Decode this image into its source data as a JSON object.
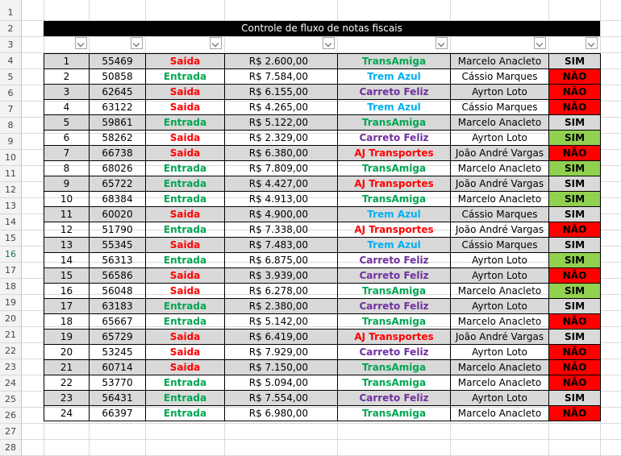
{
  "title": "Controle de fluxo de notas fiscais",
  "row_numbers": [
    "1",
    "2",
    "3",
    "4",
    "5",
    "6",
    "7",
    "8",
    "9",
    "10",
    "11",
    "12",
    "13",
    "14",
    "15",
    "16",
    "17",
    "18",
    "19",
    "20",
    "21",
    "22",
    "23",
    "24",
    "25",
    "26",
    "27",
    "28"
  ],
  "active_row": "16",
  "colors": {
    "saida": "#ff0000",
    "entrada": "#00a651",
    "transamiga": "#00a651",
    "trem_azul": "#00b0f0",
    "carreto_feliz": "#7030a0",
    "aj_transportes": "#ff0000",
    "nao_bg": "#ff0000",
    "sim_green_bg": "#92d050",
    "sim_gray_bg": "#d9d9d9"
  },
  "rows": [
    {
      "id": "1",
      "nf": "55469",
      "tipo": "Saida",
      "valor": "R$ 2.600,00",
      "transp": "TransAmiga",
      "resp": "Marcelo Anacleto",
      "status": "SIM",
      "sc": "gray"
    },
    {
      "id": "2",
      "nf": "50858",
      "tipo": "Entrada",
      "valor": "R$ 7.584,00",
      "transp": "Trem Azul",
      "resp": "Cássio Marques",
      "status": "NÃO",
      "sc": "red"
    },
    {
      "id": "3",
      "nf": "62645",
      "tipo": "Saida",
      "valor": "R$ 6.155,00",
      "transp": "Carreto Feliz",
      "resp": "Ayrton Loto",
      "status": "NÃO",
      "sc": "red"
    },
    {
      "id": "4",
      "nf": "63122",
      "tipo": "Saida",
      "valor": "R$ 4.265,00",
      "transp": "Trem Azul",
      "resp": "Cássio Marques",
      "status": "NÃO",
      "sc": "red"
    },
    {
      "id": "5",
      "nf": "59861",
      "tipo": "Entrada",
      "valor": "R$ 5.122,00",
      "transp": "TransAmiga",
      "resp": "Marcelo Anacleto",
      "status": "SIM",
      "sc": "gray"
    },
    {
      "id": "6",
      "nf": "58262",
      "tipo": "Saida",
      "valor": "R$ 2.329,00",
      "transp": "Carreto Feliz",
      "resp": "Ayrton Loto",
      "status": "SIM",
      "sc": "green"
    },
    {
      "id": "7",
      "nf": "66738",
      "tipo": "Saida",
      "valor": "R$ 6.380,00",
      "transp": "AJ Transportes",
      "resp": "João André Vargas",
      "status": "NÃO",
      "sc": "red"
    },
    {
      "id": "8",
      "nf": "68026",
      "tipo": "Entrada",
      "valor": "R$ 7.809,00",
      "transp": "TransAmiga",
      "resp": "Marcelo Anacleto",
      "status": "SIM",
      "sc": "green"
    },
    {
      "id": "9",
      "nf": "65722",
      "tipo": "Entrada",
      "valor": "R$ 4.427,00",
      "transp": "AJ Transportes",
      "resp": "João André Vargas",
      "status": "SIM",
      "sc": "gray"
    },
    {
      "id": "10",
      "nf": "68384",
      "tipo": "Entrada",
      "valor": "R$ 4.913,00",
      "transp": "TransAmiga",
      "resp": "Marcelo Anacleto",
      "status": "SIM",
      "sc": "green"
    },
    {
      "id": "11",
      "nf": "60020",
      "tipo": "Saida",
      "valor": "R$ 4.900,00",
      "transp": "Trem Azul",
      "resp": "Cássio Marques",
      "status": "SIM",
      "sc": "gray"
    },
    {
      "id": "12",
      "nf": "51790",
      "tipo": "Entrada",
      "valor": "R$ 7.338,00",
      "transp": "AJ Transportes",
      "resp": "João André Vargas",
      "status": "NÃO",
      "sc": "red"
    },
    {
      "id": "13",
      "nf": "55345",
      "tipo": "Saida",
      "valor": "R$ 7.483,00",
      "transp": "Trem Azul",
      "resp": "Cássio Marques",
      "status": "SIM",
      "sc": "gray"
    },
    {
      "id": "14",
      "nf": "56313",
      "tipo": "Entrada",
      "valor": "R$ 6.875,00",
      "transp": "Carreto Feliz",
      "resp": "Ayrton Loto",
      "status": "SIM",
      "sc": "green"
    },
    {
      "id": "15",
      "nf": "56586",
      "tipo": "Saida",
      "valor": "R$ 3.939,00",
      "transp": "Carreto Feliz",
      "resp": "Ayrton Loto",
      "status": "NÃO",
      "sc": "red"
    },
    {
      "id": "16",
      "nf": "56048",
      "tipo": "Saida",
      "valor": "R$ 6.278,00",
      "transp": "TransAmiga",
      "resp": "Marcelo Anacleto",
      "status": "SIM",
      "sc": "green"
    },
    {
      "id": "17",
      "nf": "63183",
      "tipo": "Entrada",
      "valor": "R$ 2.380,00",
      "transp": "Carreto Feliz",
      "resp": "Ayrton Loto",
      "status": "SIM",
      "sc": "gray"
    },
    {
      "id": "18",
      "nf": "65667",
      "tipo": "Entrada",
      "valor": "R$ 5.142,00",
      "transp": "TransAmiga",
      "resp": "Marcelo Anacleto",
      "status": "NÃO",
      "sc": "red"
    },
    {
      "id": "19",
      "nf": "65729",
      "tipo": "Saida",
      "valor": "R$ 6.419,00",
      "transp": "AJ Transportes",
      "resp": "João André Vargas",
      "status": "SIM",
      "sc": "gray"
    },
    {
      "id": "20",
      "nf": "53245",
      "tipo": "Saida",
      "valor": "R$ 7.929,00",
      "transp": "Carreto Feliz",
      "resp": "Ayrton Loto",
      "status": "NÃO",
      "sc": "red"
    },
    {
      "id": "21",
      "nf": "60714",
      "tipo": "Saida",
      "valor": "R$ 7.150,00",
      "transp": "TransAmiga",
      "resp": "Marcelo Anacleto",
      "status": "NÃO",
      "sc": "red"
    },
    {
      "id": "22",
      "nf": "53770",
      "tipo": "Entrada",
      "valor": "R$ 5.094,00",
      "transp": "TransAmiga",
      "resp": "Marcelo Anacleto",
      "status": "NÃO",
      "sc": "red"
    },
    {
      "id": "23",
      "nf": "56431",
      "tipo": "Entrada",
      "valor": "R$ 7.554,00",
      "transp": "Carreto Feliz",
      "resp": "Ayrton Loto",
      "status": "SIM",
      "sc": "gray"
    },
    {
      "id": "24",
      "nf": "66397",
      "tipo": "Entrada",
      "valor": "R$ 6.980,00",
      "transp": "TransAmiga",
      "resp": "Marcelo Anacleto",
      "status": "NÃO",
      "sc": "red"
    }
  ]
}
